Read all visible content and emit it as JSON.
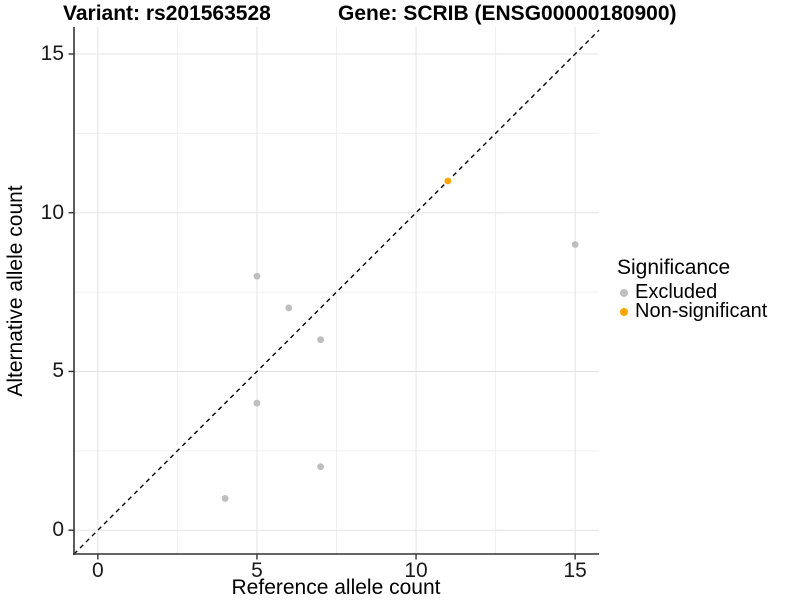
{
  "chart_data": {
    "type": "scatter",
    "title_left": "Variant: rs201563528",
    "title_right": "Gene: SCRIB (ENSG00000180900)",
    "xlabel": "Reference allele count",
    "ylabel": "Alternative allele count",
    "xlim": [
      -0.75,
      15.75
    ],
    "ylim": [
      -0.75,
      15.85
    ],
    "x_ticks": [
      0,
      5,
      10,
      15
    ],
    "y_ticks": [
      0,
      5,
      10,
      15
    ],
    "x_minor_ticks": [
      2.5,
      7.5,
      12.5
    ],
    "y_minor_ticks": [
      2.5,
      7.5,
      12.5
    ],
    "grid": true,
    "identity_line": {
      "style": "dashed",
      "color": "#000000",
      "from": [
        -0.75,
        -0.75
      ],
      "to": [
        15.75,
        15.75
      ]
    },
    "series": [
      {
        "name": "Excluded",
        "color": "#BEBEBE",
        "points": [
          [
            4,
            1
          ],
          [
            5,
            4
          ],
          [
            5,
            8
          ],
          [
            6,
            7
          ],
          [
            7,
            2
          ],
          [
            7,
            6
          ],
          [
            15,
            9
          ]
        ]
      },
      {
        "name": "Non-significant",
        "color": "#FFA500",
        "points": [
          [
            11,
            11
          ]
        ]
      }
    ],
    "legend": {
      "title": "Significance",
      "position": "right"
    },
    "colors": {
      "major_grid": "#E3E3E3",
      "minor_grid": "#F0F0F0",
      "axis_line": "#333333",
      "tick": "#333333"
    }
  }
}
